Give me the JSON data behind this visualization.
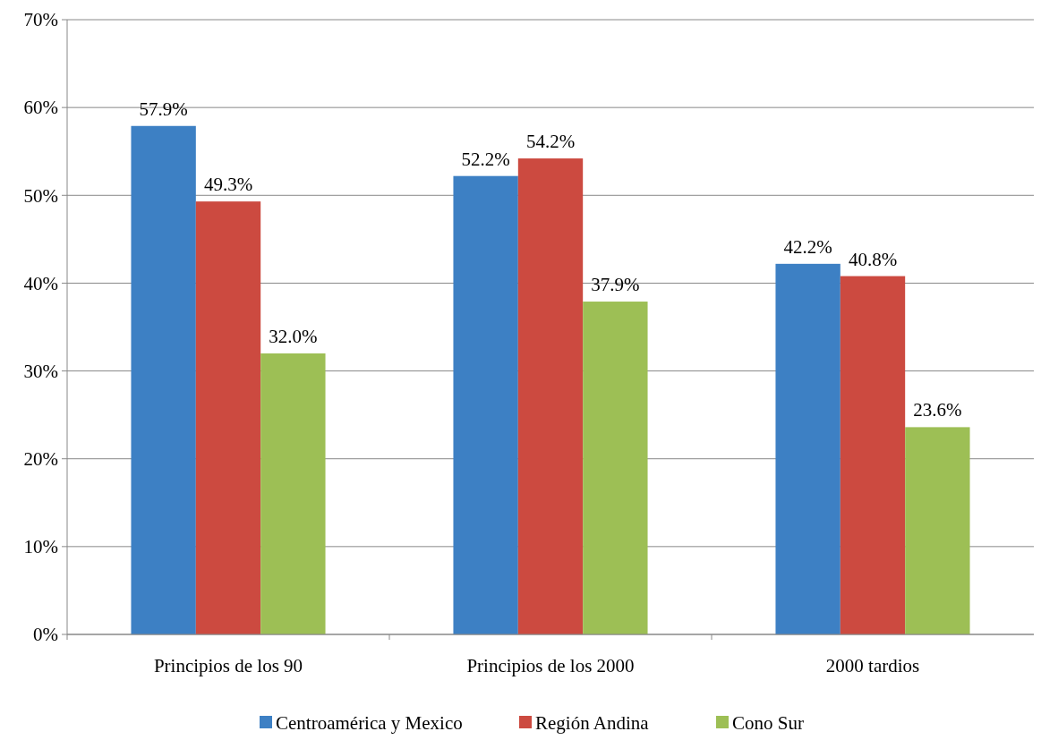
{
  "chart_data": {
    "type": "bar",
    "categories": [
      "Principios de los 90",
      "Principios de los 2000",
      "2000 tardios"
    ],
    "series": [
      {
        "name": "Centroamérica y Mexico",
        "color": "#3d80c4",
        "values": [
          57.9,
          52.2,
          42.2
        ],
        "value_labels": [
          "57.9%",
          "52.2%",
          "42.2%"
        ]
      },
      {
        "name": "Región Andina",
        "color": "#cc4a40",
        "values": [
          49.3,
          54.2,
          40.8
        ],
        "value_labels": [
          "49.3%",
          "54.2%",
          "40.8%"
        ]
      },
      {
        "name": "Cono Sur",
        "color": "#9dbf55",
        "values": [
          32.0,
          37.9,
          23.6
        ],
        "value_labels": [
          "32.0%",
          "37.9%",
          "23.6%"
        ]
      }
    ],
    "ylim": [
      0,
      70
    ],
    "yticks": [
      {
        "value": 0,
        "label": "0%"
      },
      {
        "value": 10,
        "label": "10%"
      },
      {
        "value": 20,
        "label": "20%"
      },
      {
        "value": 30,
        "label": "30%"
      },
      {
        "value": 40,
        "label": "40%"
      },
      {
        "value": 50,
        "label": "50%"
      },
      {
        "value": 60,
        "label": "60%"
      },
      {
        "value": 70,
        "label": "70%"
      }
    ],
    "grid": "y",
    "legend": "bottom"
  }
}
